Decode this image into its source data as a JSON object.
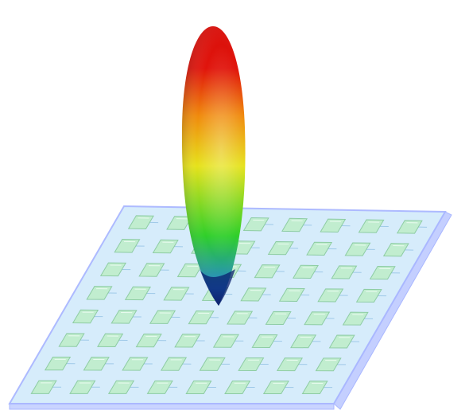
{
  "scene": {
    "array_rows": 8,
    "array_cols": 8,
    "colors": {
      "substrate_fill": "#cfe6ff",
      "substrate_edge": "#a9b7ff",
      "patch_fill": "#bfeecb",
      "patch_edge": "#86c99a",
      "feed_line": "#9fc9e8",
      "lobe_tip": "#0a1f6e",
      "lobe_blue": "#1c7fd8",
      "lobe_green": "#2fcf2a",
      "lobe_yellow": "#e6e21b",
      "lobe_orange": "#f08a0c",
      "lobe_red": "#e0140c"
    }
  }
}
